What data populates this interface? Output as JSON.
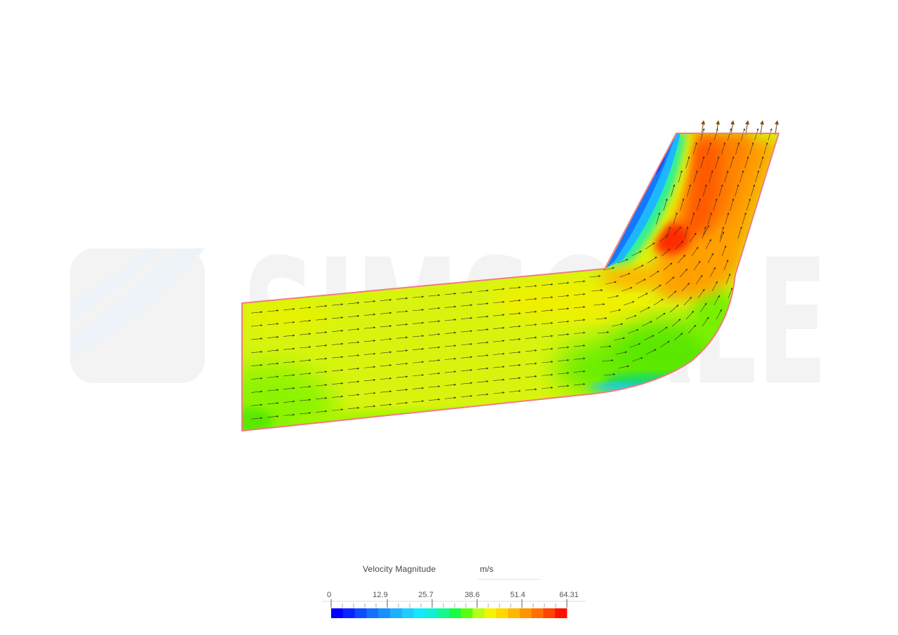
{
  "watermark": {
    "text": "SIMSCALE",
    "color": "#f3f3f3",
    "arc_color": "#eef3f9"
  },
  "result": {
    "field": "Velocity Magnitude",
    "unit": "m/s",
    "min": 0,
    "max": 64.31,
    "outline_color": "#f07c84"
  },
  "legend": {
    "title": "Velocity Magnitude",
    "unit": "m/s",
    "ticks": [
      "0",
      "12.9",
      "25.7",
      "38.6",
      "51.4",
      "64.31"
    ],
    "colors": [
      "#0000ff",
      "#0a24ff",
      "#0f4cff",
      "#1470ff",
      "#1890ff",
      "#1cb0ff",
      "#20ccff",
      "#14e8ff",
      "#10f0d8",
      "#14f890",
      "#18fc44",
      "#5aff10",
      "#b4ff14",
      "#f4f400",
      "#ffd800",
      "#ffb800",
      "#ff9400",
      "#ff7000",
      "#ff4400",
      "#ff1000"
    ]
  }
}
